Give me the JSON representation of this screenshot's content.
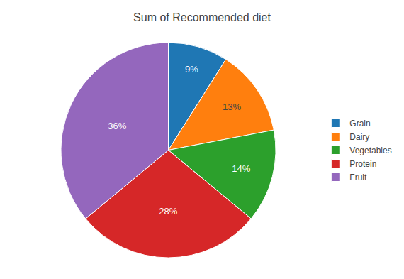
{
  "chart_data": {
    "type": "pie",
    "title": "Sum of Recommended diet",
    "categories": [
      "Grain",
      "Dairy",
      "Vegetables",
      "Protein",
      "Fruit"
    ],
    "values": [
      9,
      13,
      14,
      28,
      36
    ],
    "value_labels": [
      "9%",
      "13%",
      "14%",
      "28%",
      "36%"
    ],
    "data_labels": true,
    "legend": "right"
  }
}
